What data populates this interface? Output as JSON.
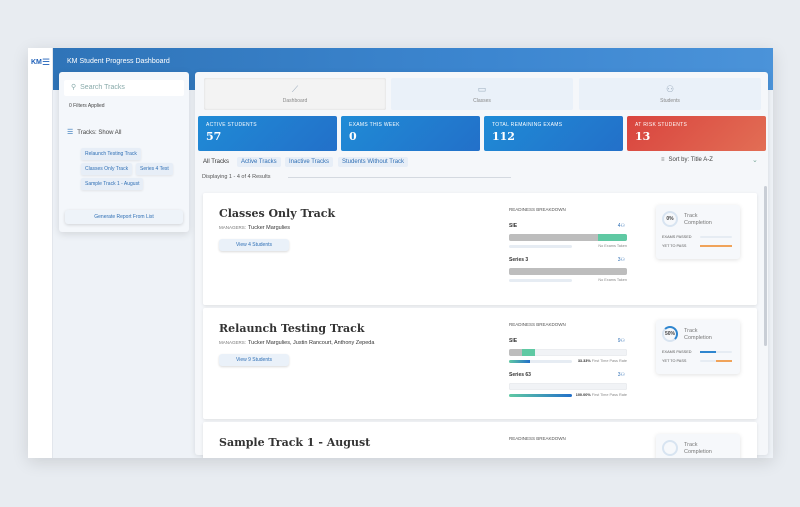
{
  "app": {
    "logo": "KM",
    "title": "KM Student Progress Dashboard"
  },
  "sidebar": {
    "search_placeholder": "Search Tracks",
    "filters_applied": "0 Filters Applied",
    "tracks_filter": "Tracks: Show All",
    "chips": [
      "Relaunch Testing Track",
      "Classes Only Track",
      "Series 4 Test",
      "Sample Track 1 - August"
    ],
    "generate_button": "Generate Report From List"
  },
  "nav": [
    {
      "label": "Dashboard",
      "icon": "chart-line-icon"
    },
    {
      "label": "Classes",
      "icon": "classroom-icon"
    },
    {
      "label": "Students",
      "icon": "users-icon"
    }
  ],
  "stats": [
    {
      "label": "ACTIVE STUDENTS",
      "value": "57"
    },
    {
      "label": "EXAMS THIS WEEK",
      "value": "0"
    },
    {
      "label": "TOTAL REMAINING EXAMS",
      "value": "112"
    },
    {
      "label": "AT RISK STUDENTS",
      "value": "13"
    }
  ],
  "colors": {
    "stat_blue": "#2370c9",
    "stat_red": "#d9443e",
    "passed_green": "#5fc9a3",
    "accent": "#2f6fb5"
  },
  "filter_tabs": [
    "All Tracks",
    "Active Tracks",
    "Inactive Tracks",
    "Students Without Track"
  ],
  "sort": "Sort by: Title A-Z",
  "displaying": "Displaying 1 - 4 of 4 Results",
  "labels": {
    "managers": "MANAGERS:",
    "readiness": "READINESS BREAKDOWN",
    "track_completion": "Track Completion",
    "exams_passed": "EXAMS PASSED",
    "yet_to_pass": "YET TO PASS"
  },
  "tracks": [
    {
      "title": "Classes Only Track",
      "managers": "Tucker Margulies",
      "view": "View 4 Students",
      "completion": "0%",
      "completion_pct": 0,
      "exams": [
        {
          "name": "SIE",
          "count": "4",
          "grey_pct": 75,
          "green_pct": 25,
          "rate_text": "No Exams Taken",
          "rate_pct": 0
        },
        {
          "name": "Series 3",
          "count": "3",
          "grey_pct": 100,
          "green_pct": 0,
          "rate_text": "No Exams Taken",
          "rate_pct": 0
        }
      ]
    },
    {
      "title": "Relaunch Testing Track",
      "managers": "Tucker Margulies, Justin Rancourt, Anthony Zepeda",
      "view": "View 9 Students",
      "completion": "50%",
      "completion_pct": 50,
      "exams": [
        {
          "name": "SIE",
          "count": "9",
          "grey_pct": 11,
          "green_pct": 11,
          "rate_value": "33.33%",
          "rate_text": "First Time Pass Rate",
          "rate_pct": 33.33
        },
        {
          "name": "Series 63",
          "count": "3",
          "grey_pct": 0,
          "green_pct": 0,
          "rate_value": "100.00%",
          "rate_text": "First Time Pass Rate",
          "rate_pct": 100
        }
      ]
    },
    {
      "title": "Sample Track 1 - August"
    }
  ]
}
